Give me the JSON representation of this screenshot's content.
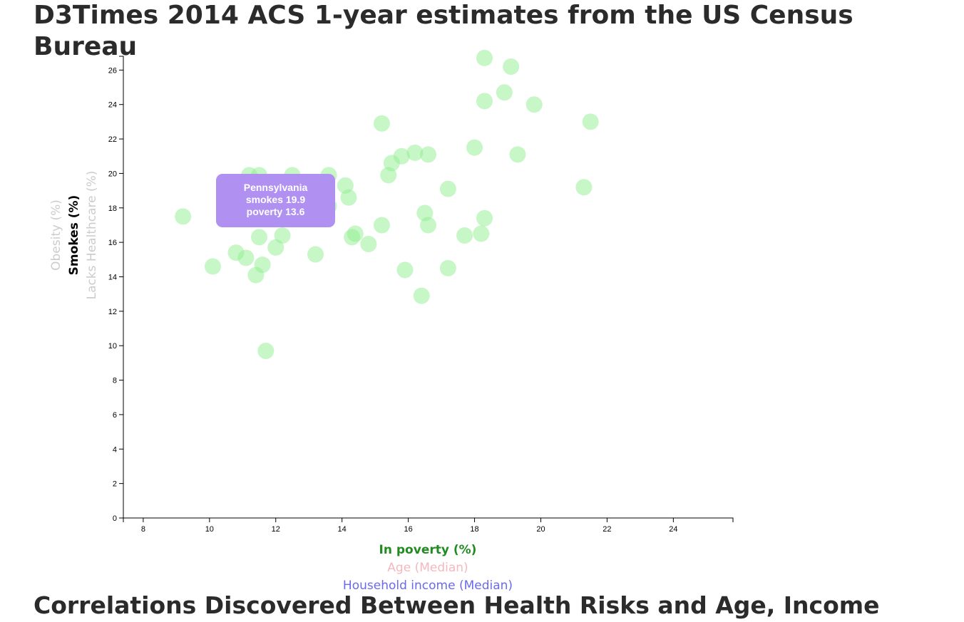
{
  "page": {
    "title": "D3Times 2014 ACS 1-year estimates from the US Census Bureau",
    "section_title": "Correlations Discovered Between Health Risks and Age, Income"
  },
  "axes": {
    "x_labels": [
      {
        "text": "In poverty (%)",
        "color": "#228b22",
        "active": true
      },
      {
        "text": "Age (Median)",
        "color": "#f4b8bf",
        "active": false
      },
      {
        "text": "Household income (Median)",
        "color": "#6a6aee",
        "active": false
      }
    ],
    "y_labels": [
      {
        "text": "Obesity (%)",
        "color": "#cccccc",
        "active": false
      },
      {
        "text": "Smokes (%)",
        "color": "#000000",
        "active": true
      },
      {
        "text": "Lacks Healthcare (%)",
        "color": "#cccccc",
        "active": false
      }
    ]
  },
  "tooltip": {
    "state": "Pennsylvania",
    "line1": "smokes 19.9",
    "line2": "poverty 13.6"
  },
  "colors": {
    "dot": "#90ee90",
    "tooltip": "#b090f0"
  },
  "chart_data": {
    "type": "scatter",
    "xlabel": "In poverty (%)",
    "ylabel": "Smokes (%)",
    "xlim": [
      7.4,
      25.8
    ],
    "ylim": [
      0,
      26.8
    ],
    "x_ticks": [
      8,
      10,
      12,
      14,
      16,
      18,
      20,
      22,
      24
    ],
    "y_ticks": [
      0,
      2,
      4,
      6,
      8,
      10,
      12,
      14,
      16,
      18,
      20,
      22,
      24,
      26
    ],
    "points": [
      {
        "x": 18.3,
        "y": 26.7
      },
      {
        "x": 19.1,
        "y": 26.2
      },
      {
        "x": 18.9,
        "y": 24.7
      },
      {
        "x": 18.3,
        "y": 24.2
      },
      {
        "x": 19.8,
        "y": 24.0
      },
      {
        "x": 21.5,
        "y": 23.0
      },
      {
        "x": 15.2,
        "y": 22.9
      },
      {
        "x": 18.0,
        "y": 21.5
      },
      {
        "x": 16.2,
        "y": 21.2
      },
      {
        "x": 16.6,
        "y": 21.1
      },
      {
        "x": 19.3,
        "y": 21.1
      },
      {
        "x": 15.8,
        "y": 21.0
      },
      {
        "x": 15.5,
        "y": 20.6
      },
      {
        "x": 11.2,
        "y": 19.9
      },
      {
        "x": 11.5,
        "y": 19.9
      },
      {
        "x": 12.5,
        "y": 19.9
      },
      {
        "x": 13.6,
        "y": 19.9
      },
      {
        "x": 15.4,
        "y": 19.9
      },
      {
        "x": 11.8,
        "y": 19.5
      },
      {
        "x": 14.1,
        "y": 19.3
      },
      {
        "x": 21.3,
        "y": 19.2
      },
      {
        "x": 17.2,
        "y": 19.1
      },
      {
        "x": 14.2,
        "y": 18.6
      },
      {
        "x": 13.6,
        "y": 18.1
      },
      {
        "x": 16.5,
        "y": 17.7
      },
      {
        "x": 9.2,
        "y": 17.5
      },
      {
        "x": 18.3,
        "y": 17.4
      },
      {
        "x": 15.2,
        "y": 17.0
      },
      {
        "x": 16.6,
        "y": 17.0
      },
      {
        "x": 14.4,
        "y": 16.5
      },
      {
        "x": 18.2,
        "y": 16.5
      },
      {
        "x": 12.2,
        "y": 16.4
      },
      {
        "x": 17.7,
        "y": 16.4
      },
      {
        "x": 11.5,
        "y": 16.3
      },
      {
        "x": 14.3,
        "y": 16.3
      },
      {
        "x": 14.8,
        "y": 15.9
      },
      {
        "x": 12.0,
        "y": 15.7
      },
      {
        "x": 10.8,
        "y": 15.4
      },
      {
        "x": 13.2,
        "y": 15.3
      },
      {
        "x": 11.1,
        "y": 15.1
      },
      {
        "x": 11.6,
        "y": 14.7
      },
      {
        "x": 10.1,
        "y": 14.6
      },
      {
        "x": 17.2,
        "y": 14.5
      },
      {
        "x": 15.9,
        "y": 14.4
      },
      {
        "x": 11.4,
        "y": 14.1
      },
      {
        "x": 16.4,
        "y": 12.9
      },
      {
        "x": 11.7,
        "y": 9.7
      }
    ]
  }
}
